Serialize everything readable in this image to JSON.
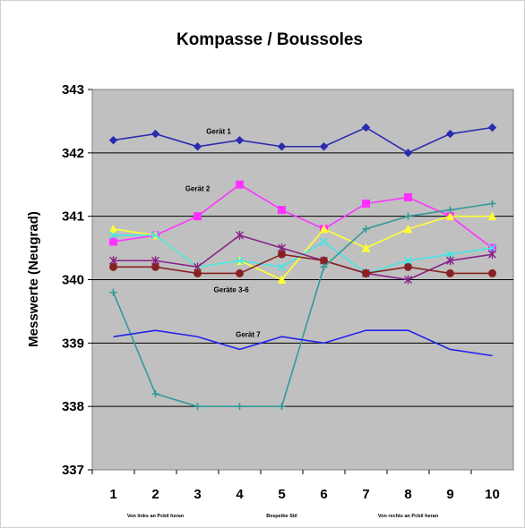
{
  "chart_data": {
    "type": "line",
    "title": "Kompasse / Boussoles",
    "xlabel": "",
    "ylabel": "Messwerte (Neugrad)",
    "categories": [
      "1",
      "2",
      "3",
      "4",
      "5",
      "6",
      "7",
      "8",
      "9",
      "10"
    ],
    "ylim": [
      337,
      343
    ],
    "yticks": [
      "337",
      "338",
      "339",
      "340",
      "341",
      "342",
      "343"
    ],
    "grid": true,
    "series": [
      {
        "color": "#2b2bb0",
        "marker": "diamond",
        "values": [
          342.2,
          342.3,
          342.1,
          342.2,
          342.1,
          342.1,
          342.4,
          342.0,
          342.3,
          342.4
        ]
      },
      {
        "color": "#ff33ff",
        "marker": "square",
        "values": [
          340.6,
          340.7,
          341.0,
          341.5,
          341.1,
          340.8,
          341.2,
          341.3,
          341.0,
          340.5
        ]
      },
      {
        "color": "#ffff33",
        "marker": "triangle",
        "values": [
          340.8,
          340.7,
          340.2,
          340.3,
          340.0,
          340.8,
          340.5,
          340.8,
          341.0,
          341.0
        ]
      },
      {
        "color": "#44e6e6",
        "marker": "x",
        "values": [
          340.7,
          340.7,
          340.2,
          340.3,
          340.2,
          340.6,
          340.1,
          340.3,
          340.4,
          340.5
        ]
      },
      {
        "color": "#882288",
        "marker": "star",
        "values": [
          340.3,
          340.3,
          340.2,
          340.7,
          340.5,
          340.3,
          340.1,
          340.0,
          340.3,
          340.4
        ]
      },
      {
        "color": "#882222",
        "marker": "circle",
        "values": [
          340.2,
          340.2,
          340.1,
          340.1,
          340.4,
          340.3,
          340.1,
          340.2,
          340.1,
          340.1
        ]
      },
      {
        "color": "#339999",
        "marker": "plus",
        "values": [
          339.8,
          338.2,
          338.0,
          338.0,
          338.0,
          340.2,
          340.8,
          341.0,
          341.1,
          341.2
        ]
      },
      {
        "color": "#2222ee",
        "marker": "none",
        "values": [
          339.1,
          339.2,
          339.1,
          338.9,
          339.1,
          339.0,
          339.2,
          339.2,
          338.9,
          338.8
        ]
      }
    ],
    "annotations": [
      {
        "text": "Gerät 1",
        "x": 3.5,
        "y": 342.3
      },
      {
        "text": "Gerät 2",
        "x": 3.0,
        "y": 341.4
      },
      {
        "text": "Geräte 3-6",
        "x": 3.8,
        "y": 339.8
      },
      {
        "text": "Gerät 7",
        "x": 4.2,
        "y": 339.1
      }
    ],
    "footer_notes": [
      {
        "text": "Von links an Pcbil heran",
        "x": 2.0
      },
      {
        "text": "Bespeibe Stil",
        "x": 5.0
      },
      {
        "text": "Von rechts an Pcbil heran",
        "x": 8.0
      }
    ]
  }
}
